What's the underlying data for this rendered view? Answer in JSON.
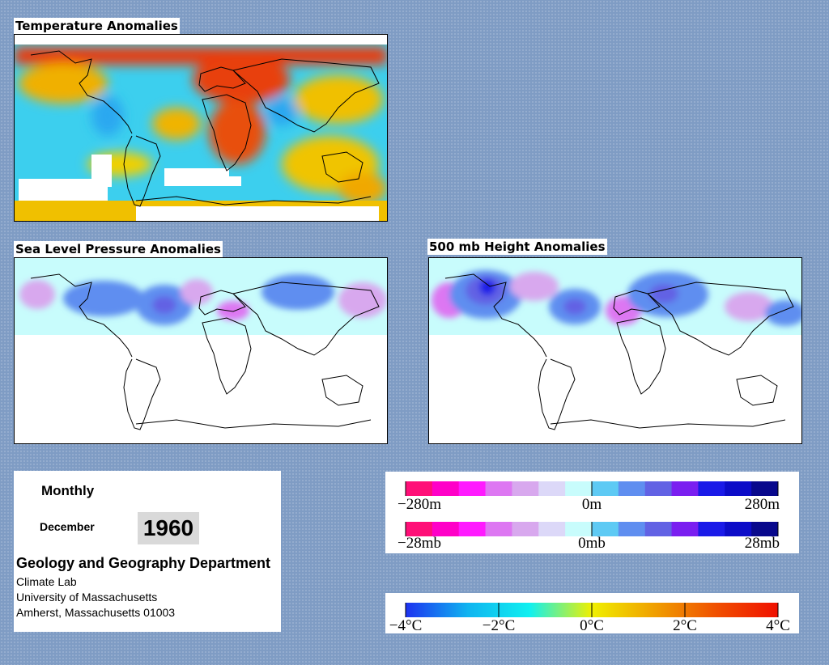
{
  "panels": {
    "temperature": {
      "title": "Temperature Anomalies"
    },
    "slp": {
      "title": "Sea Level Pressure Anomalies"
    },
    "height": {
      "title": "500 mb Height Anomalies"
    }
  },
  "info": {
    "frequency": "Monthly",
    "month": "December",
    "year": "1960",
    "department": "Geology and Geography Department",
    "lab": "Climate Lab",
    "university": "University of Massachusetts",
    "address": "Amherst, Massachusetts 01003"
  },
  "legends": {
    "height": {
      "labels": [
        "−280m",
        "0m",
        "280m"
      ],
      "colors": [
        "#ff0f78",
        "#ff00c8",
        "#ff1aff",
        "#dd77f2",
        "#d8a8ee",
        "#dcd8f8",
        "#c8fcfc",
        "#5ecaf4",
        "#5f8ef0",
        "#6262e4",
        "#7a1ff0",
        "#1a1ae8",
        "#0c0cc8",
        "#08088c"
      ]
    },
    "pressure": {
      "labels": [
        "−28mb",
        "0mb",
        "28mb"
      ],
      "colors": [
        "#ff0f78",
        "#ff00c8",
        "#ff1aff",
        "#dd77f2",
        "#d8a8ee",
        "#dcd8f8",
        "#c8fcfc",
        "#5ecaf4",
        "#5f8ef0",
        "#6262e4",
        "#7a1ff0",
        "#1a1ae8",
        "#0c0cc8",
        "#08088c"
      ]
    },
    "temperature": {
      "labels": [
        "−4°C",
        "−2°C",
        "0°C",
        "2°C",
        "4°C"
      ],
      "gradient": [
        "#1e32f0",
        "#10b4f0",
        "#10f0f0",
        "#f0f000",
        "#f0a000",
        "#f05000",
        "#f01000"
      ]
    }
  },
  "colors": {
    "background": "#7f9cc4",
    "map_ocean_blank": "#ffffff",
    "coastline": "#000000"
  }
}
